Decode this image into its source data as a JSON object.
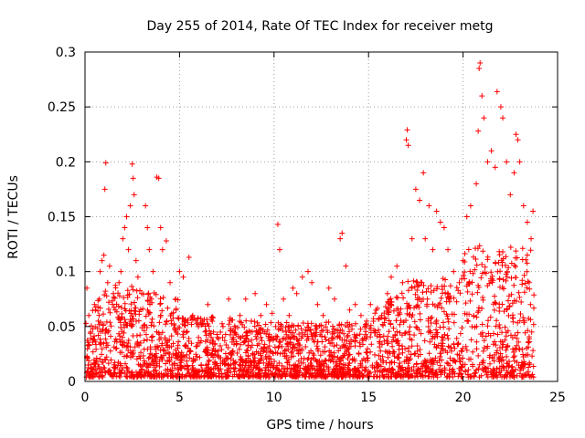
{
  "chart_data": {
    "type": "scatter",
    "title": "Day 255 of 2014, Rate Of TEC Index for receiver metg",
    "xlabel": "GPS time / hours",
    "ylabel": "ROTI / TECUs",
    "xlim": [
      0,
      25
    ],
    "ylim": [
      0,
      0.3
    ],
    "x_ticks": [
      "0",
      "5",
      "10",
      "15",
      "20",
      "25"
    ],
    "y_ticks": [
      "0",
      "0.05",
      "0.1",
      "0.15",
      "0.2",
      "0.25",
      "0.3"
    ],
    "grid": true,
    "marker": "+",
    "color": "#ff0000",
    "series": [
      {
        "points": [
          [
            0.1,
            0.085
          ],
          [
            0.2,
            0.06
          ],
          [
            0.3,
            0.045
          ],
          [
            0.5,
            0.07
          ],
          [
            0.7,
            0.055
          ],
          [
            0.8,
            0.1
          ],
          [
            0.9,
            0.11
          ],
          [
            1.0,
            0.115
          ],
          [
            1.05,
            0.175
          ],
          [
            1.1,
            0.199
          ],
          [
            1.2,
            0.09
          ],
          [
            1.3,
            0.105
          ],
          [
            1.5,
            0.08
          ],
          [
            1.6,
            0.065
          ],
          [
            1.8,
            0.09
          ],
          [
            1.9,
            0.1
          ],
          [
            2.0,
            0.13
          ],
          [
            2.1,
            0.14
          ],
          [
            2.2,
            0.15
          ],
          [
            2.3,
            0.12
          ],
          [
            2.4,
            0.16
          ],
          [
            2.5,
            0.198
          ],
          [
            2.55,
            0.185
          ],
          [
            2.6,
            0.17
          ],
          [
            2.7,
            0.11
          ],
          [
            2.8,
            0.095
          ],
          [
            3.0,
            0.08
          ],
          [
            3.2,
            0.16
          ],
          [
            3.3,
            0.14
          ],
          [
            3.4,
            0.12
          ],
          [
            3.6,
            0.1
          ],
          [
            3.8,
            0.186
          ],
          [
            3.9,
            0.185
          ],
          [
            4.0,
            0.14
          ],
          [
            4.1,
            0.12
          ],
          [
            4.3,
            0.128
          ],
          [
            4.5,
            0.09
          ],
          [
            4.8,
            0.075
          ],
          [
            5.0,
            0.1
          ],
          [
            5.2,
            0.095
          ],
          [
            5.5,
            0.113
          ],
          [
            5.7,
            0.06
          ],
          [
            6.0,
            0.05
          ],
          [
            6.2,
            0.055
          ],
          [
            6.5,
            0.07
          ],
          [
            6.8,
            0.045
          ],
          [
            7.0,
            0.04
          ],
          [
            7.3,
            0.05
          ],
          [
            7.6,
            0.075
          ],
          [
            7.9,
            0.045
          ],
          [
            8.2,
            0.06
          ],
          [
            8.5,
            0.075
          ],
          [
            8.8,
            0.055
          ],
          [
            9.0,
            0.08
          ],
          [
            9.3,
            0.06
          ],
          [
            9.6,
            0.07
          ],
          [
            9.9,
            0.062
          ],
          [
            10.2,
            0.143
          ],
          [
            10.3,
            0.12
          ],
          [
            10.5,
            0.075
          ],
          [
            10.8,
            0.06
          ],
          [
            11.0,
            0.085
          ],
          [
            11.2,
            0.08
          ],
          [
            11.5,
            0.095
          ],
          [
            11.8,
            0.1
          ],
          [
            12.0,
            0.09
          ],
          [
            12.3,
            0.07
          ],
          [
            12.6,
            0.06
          ],
          [
            12.9,
            0.085
          ],
          [
            13.2,
            0.075
          ],
          [
            13.5,
            0.13
          ],
          [
            13.6,
            0.135
          ],
          [
            13.8,
            0.105
          ],
          [
            14.0,
            0.065
          ],
          [
            14.3,
            0.07
          ],
          [
            14.6,
            0.06
          ],
          [
            14.9,
            0.055
          ],
          [
            15.1,
            0.07
          ],
          [
            15.4,
            0.065
          ],
          [
            15.7,
            0.06
          ],
          [
            16.0,
            0.08
          ],
          [
            16.2,
            0.095
          ],
          [
            16.5,
            0.105
          ],
          [
            16.8,
            0.09
          ],
          [
            17.0,
            0.22
          ],
          [
            17.05,
            0.229
          ],
          [
            17.1,
            0.215
          ],
          [
            17.3,
            0.13
          ],
          [
            17.5,
            0.175
          ],
          [
            17.7,
            0.165
          ],
          [
            17.9,
            0.19
          ],
          [
            18.0,
            0.13
          ],
          [
            18.2,
            0.16
          ],
          [
            18.4,
            0.12
          ],
          [
            18.6,
            0.155
          ],
          [
            18.8,
            0.145
          ],
          [
            19.0,
            0.14
          ],
          [
            19.2,
            0.12
          ],
          [
            19.5,
            0.1
          ],
          [
            19.8,
            0.09
          ],
          [
            20.0,
            0.11
          ],
          [
            20.2,
            0.15
          ],
          [
            20.4,
            0.16
          ],
          [
            20.7,
            0.18
          ],
          [
            20.8,
            0.228
          ],
          [
            20.85,
            0.285
          ],
          [
            20.9,
            0.29
          ],
          [
            21.0,
            0.26
          ],
          [
            21.1,
            0.24
          ],
          [
            21.3,
            0.2
          ],
          [
            21.5,
            0.21
          ],
          [
            21.7,
            0.195
          ],
          [
            21.8,
            0.264
          ],
          [
            22.0,
            0.25
          ],
          [
            22.1,
            0.24
          ],
          [
            22.3,
            0.2
          ],
          [
            22.5,
            0.17
          ],
          [
            22.7,
            0.19
          ],
          [
            22.8,
            0.225
          ],
          [
            22.9,
            0.22
          ],
          [
            23.0,
            0.2
          ],
          [
            23.2,
            0.16
          ],
          [
            23.4,
            0.145
          ],
          [
            23.6,
            0.13
          ],
          [
            23.7,
            0.155
          ]
        ]
      }
    ]
  }
}
